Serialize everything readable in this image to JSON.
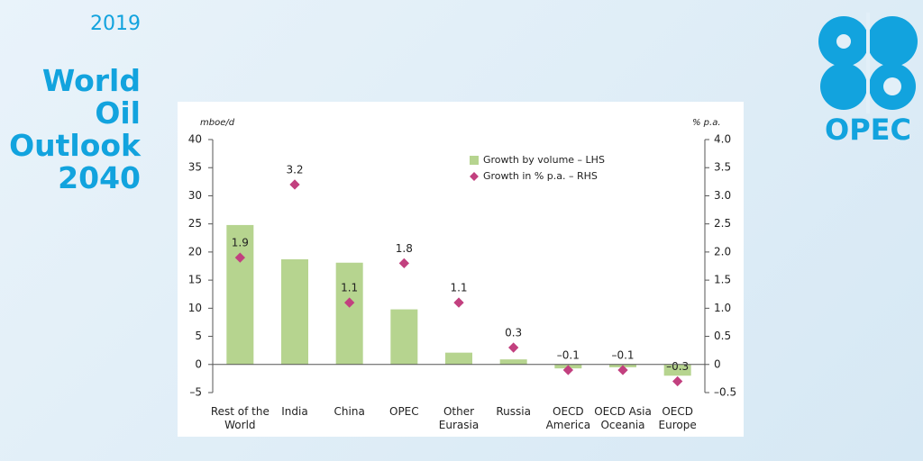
{
  "header": {
    "year": "2019",
    "title": [
      "World",
      "Oil",
      "Outlook",
      "2040"
    ],
    "logo": "OPEC"
  },
  "chart_data": {
    "type": "bar",
    "y_label": "mboe/d",
    "y2_label": "% p.a.",
    "categories": [
      "Rest of the\nWorld",
      "India",
      "China",
      "OPEC",
      "Other\nEurasia",
      "Russia",
      "OECD\nAmerica",
      "OECD Asia\nOceania",
      "OECD\nEurope"
    ],
    "series": [
      {
        "name": "Growth by volume – LHS",
        "type": "bar",
        "color": "#b6d48f",
        "values": [
          24.8,
          18.7,
          18.1,
          9.8,
          2.1,
          0.9,
          -0.7,
          -0.5,
          -2.0
        ]
      },
      {
        "name": "Growth in % p.a. – RHS",
        "type": "scatter",
        "axis": "y2",
        "color": "#c2407f",
        "values": [
          1.9,
          3.2,
          1.1,
          1.8,
          1.1,
          0.3,
          -0.1,
          -0.1,
          -0.3
        ],
        "value_labels": [
          "1.9",
          "3.2",
          "1.1",
          "1.8",
          "1.1",
          "0.3",
          "–0.1",
          "–0.1",
          "–0.3"
        ]
      }
    ],
    "ylim": [
      -5,
      40
    ],
    "yticks": [
      {
        "value": -5,
        "label": "–5"
      },
      0,
      5,
      10,
      15,
      20,
      25,
      30,
      35,
      40
    ],
    "y2lim": [
      -0.5,
      4
    ],
    "y2ticks": [
      {
        "value": -0.5,
        "label": "–0.5"
      },
      0,
      {
        "value": 0.5,
        "label": "0.5"
      },
      {
        "value": 1,
        "label": "1.0"
      },
      {
        "value": 1.5,
        "label": "1.5"
      },
      {
        "value": 2,
        "label": "2.0"
      },
      {
        "value": 2.5,
        "label": "2.5"
      },
      {
        "value": 3,
        "label": "3.0"
      },
      {
        "value": 3.5,
        "label": "3.5"
      },
      {
        "value": 4,
        "label": "4.0"
      }
    ],
    "legend": "top-right"
  }
}
